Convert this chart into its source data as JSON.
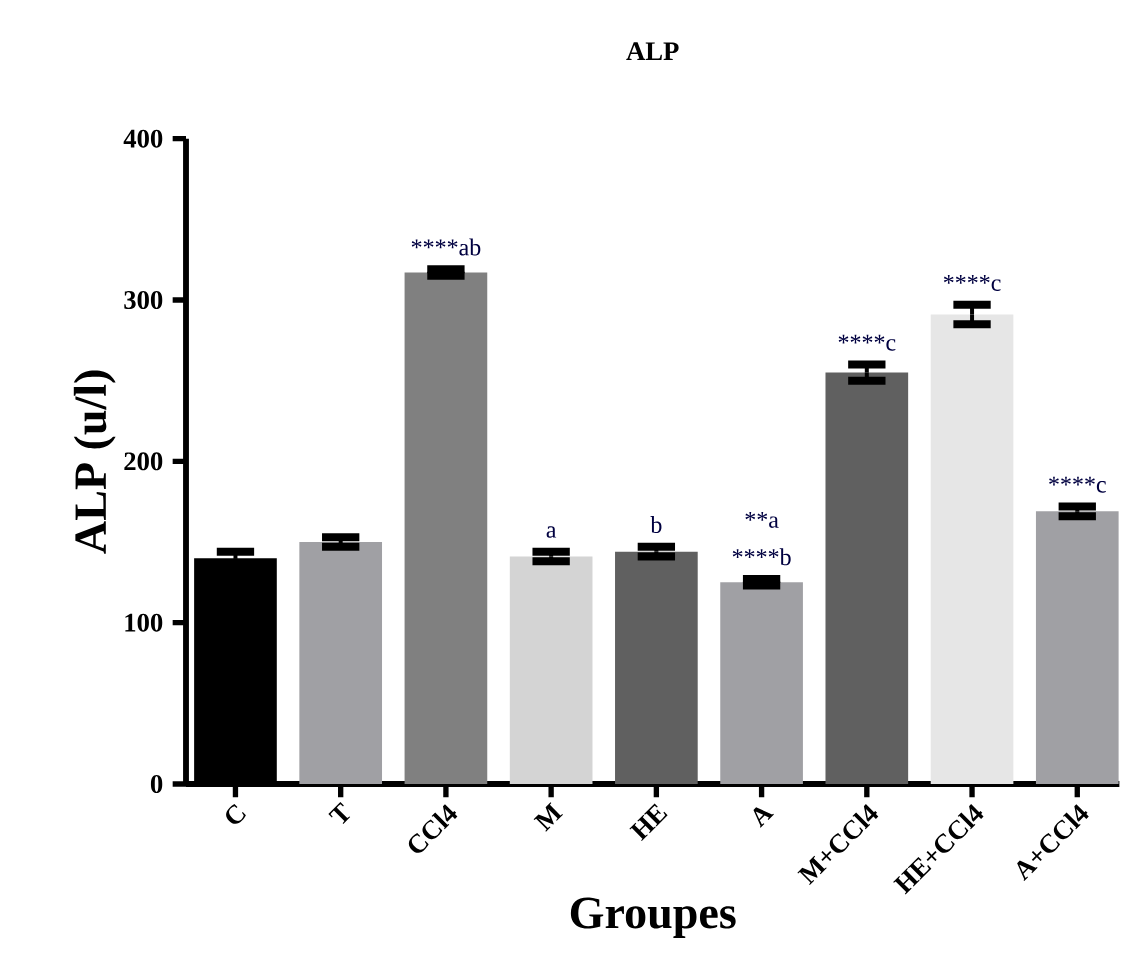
{
  "chart_data": {
    "type": "bar",
    "title": "ALP",
    "xlabel": "Groupes",
    "ylabel": "ALP (u/l)",
    "categories": [
      "C",
      "T",
      "CCl4",
      "M",
      "HE",
      "A",
      "M+CCl4",
      "HE+CCl4",
      "A+CCl4"
    ],
    "values": [
      140,
      150,
      317,
      141,
      144,
      125,
      255,
      291,
      169
    ],
    "errors": [
      4,
      3,
      2,
      3,
      3,
      2,
      5,
      6,
      3
    ],
    "colors": [
      "#000000",
      "#a0a0a4",
      "#808080",
      "#d4d4d4",
      "#606060",
      "#a0a0a4",
      "#606060",
      "#e6e6e6",
      "#a0a0a4"
    ],
    "ylim": [
      0,
      400
    ],
    "yticks": [
      0,
      100,
      200,
      300,
      400
    ],
    "grid": false,
    "annotations": [
      {
        "text": "****ab",
        "x": "CCl4",
        "y": 319
      },
      {
        "text": "a",
        "x": "M",
        "y": 144
      },
      {
        "text": "b",
        "x": "HE",
        "y": 147
      },
      {
        "text": "****b",
        "x": "A",
        "y": 127
      },
      {
        "text": "**a",
        "x": "A",
        "y": 127
      },
      {
        "text": "****c",
        "x": "M+CCl4",
        "y": 260
      },
      {
        "text": "****c",
        "x": "HE+CCl4",
        "y": 297
      },
      {
        "text": "****c",
        "x": "A+CCl4",
        "y": 172
      }
    ]
  }
}
